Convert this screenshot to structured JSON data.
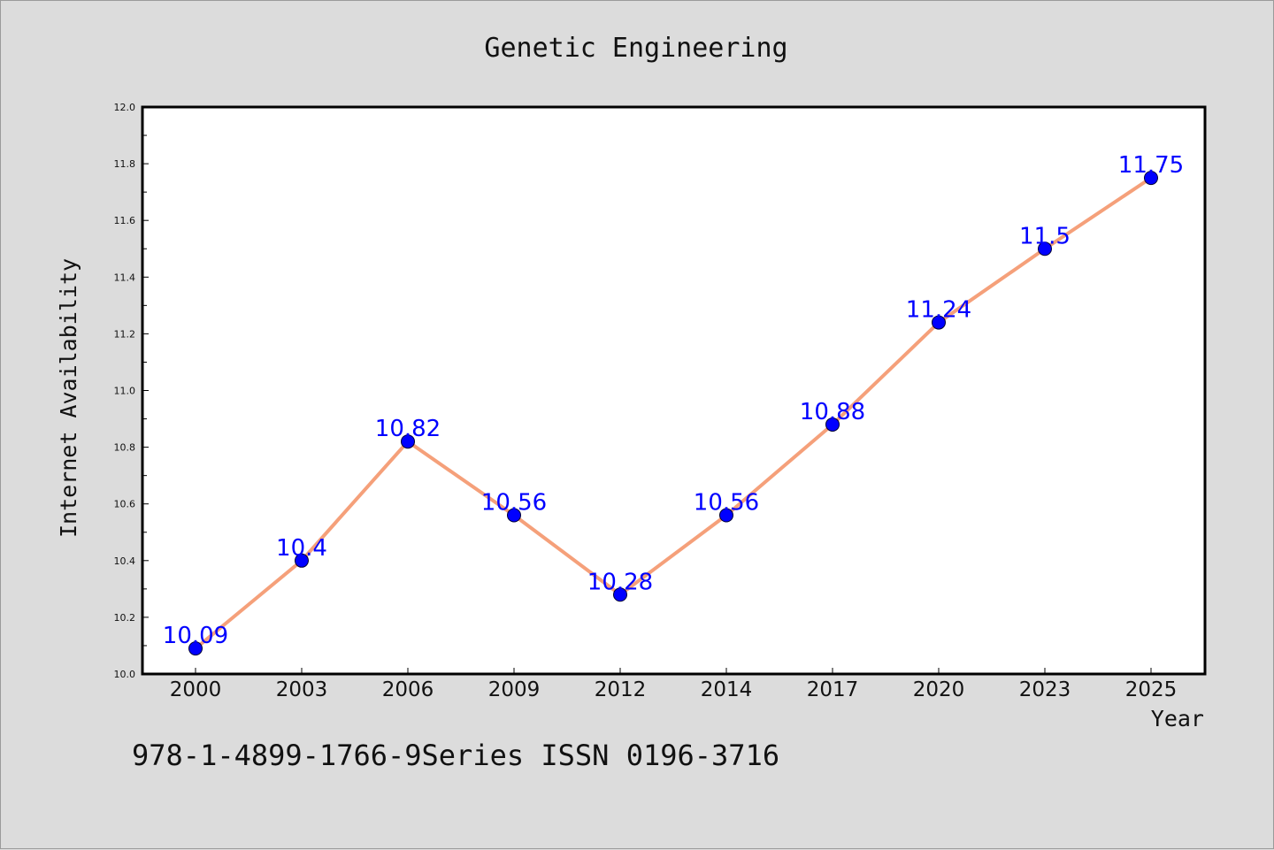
{
  "footer_text": "978-1-4899-1766-9Series ISSN 0196-3716",
  "chart_data": {
    "type": "line",
    "title": "Genetic Engineering",
    "xlabel": "Year",
    "ylabel": "Internet Availability",
    "categories": [
      "2000",
      "2003",
      "2006",
      "2009",
      "2012",
      "2014",
      "2017",
      "2020",
      "2023",
      "2025"
    ],
    "series": [
      {
        "values": [
          10.09,
          10.4,
          10.82,
          10.56,
          10.28,
          10.56,
          10.88,
          11.24,
          11.5,
          11.75
        ],
        "line_color": "#f5a07a",
        "marker_color": "#0000ff"
      }
    ],
    "data_labels": [
      "10.09",
      "10.4",
      "10.82",
      "10.56",
      "10.28",
      "10.56",
      "10.88",
      "11.24",
      "11.5",
      "11.75"
    ],
    "ylim": [
      10.0,
      12.0
    ],
    "yticks": [
      "10.0",
      "10.2",
      "10.4",
      "10.6",
      "10.8",
      "11.0",
      "11.2",
      "11.4",
      "11.6",
      "11.8",
      "12.0"
    ],
    "grid": false,
    "legend": "none",
    "colors": {
      "background": "#dcdcdc",
      "plot_background": "#ffffff"
    }
  }
}
